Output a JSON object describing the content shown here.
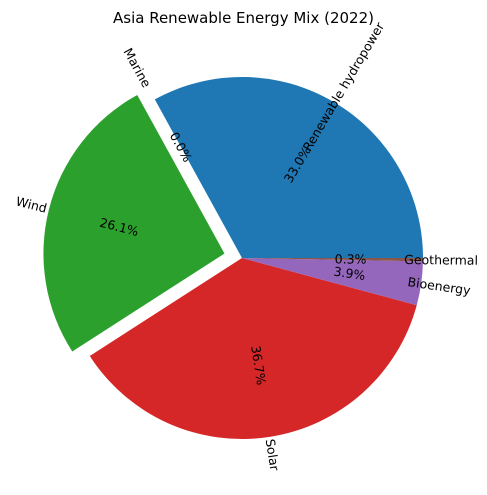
{
  "chart_data": {
    "type": "pie",
    "title": "Asia Renewable Energy Mix (2022)",
    "slices": [
      {
        "label": "Renewable hydropower",
        "value": 33.0,
        "pct_label": "33.0%",
        "color": "#1f77b4",
        "explode": 0.0
      },
      {
        "label": "Marine",
        "value": 0.0,
        "pct_label": "0.0%",
        "color": "#ff7f0e",
        "explode": 0.1
      },
      {
        "label": "Wind",
        "value": 26.1,
        "pct_label": "26.1%",
        "color": "#2ca02c",
        "explode": 0.1
      },
      {
        "label": "Solar",
        "value": 36.7,
        "pct_label": "36.7%",
        "color": "#d62728",
        "explode": 0.0
      },
      {
        "label": "Bioenergy",
        "value": 3.9,
        "pct_label": "3.9%",
        "color": "#9467bd",
        "explode": 0.0
      },
      {
        "label": "Geothermal",
        "value": 0.3,
        "pct_label": "0.3%",
        "color": "#8c564b",
        "explode": 0.0
      }
    ],
    "start_angle": 0,
    "direction": "counterclockwise",
    "rotate_labels": true
  }
}
